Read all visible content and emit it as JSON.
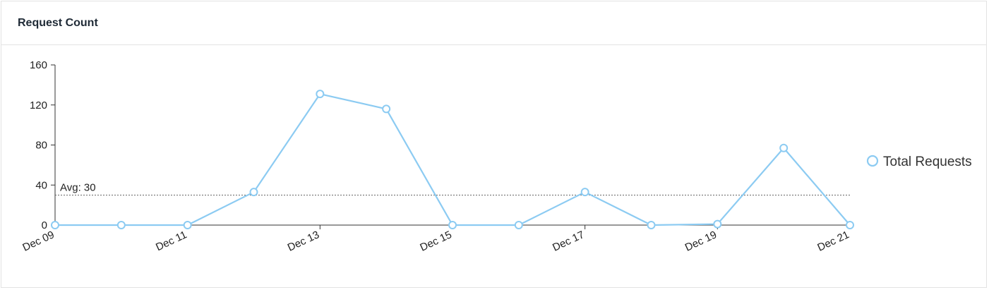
{
  "panel": {
    "title": "Request Count"
  },
  "chart_data": {
    "type": "line",
    "x": [
      "Dec 09",
      "Dec 10",
      "Dec 11",
      "Dec 12",
      "Dec 13",
      "Dec 14",
      "Dec 15",
      "Dec 16",
      "Dec 17",
      "Dec 18",
      "Dec 19",
      "Dec 20",
      "Dec 21"
    ],
    "x_tick_labels": [
      "Dec 09",
      "Dec 11",
      "Dec 13",
      "Dec 15",
      "Dec 17",
      "Dec 19",
      "Dec 21"
    ],
    "series": [
      {
        "name": "Total Requests",
        "values": [
          0,
          0,
          0,
          33,
          131,
          116,
          0,
          0,
          33,
          0,
          1,
          77,
          0
        ]
      }
    ],
    "ylim": [
      0,
      160
    ],
    "y_ticks": [
      0,
      40,
      80,
      120,
      160
    ],
    "average": {
      "label": "Avg: 30",
      "value": 30
    },
    "legend": "right",
    "grid": false,
    "colors": {
      "line": "#8ccbf2",
      "marker_fill": "#ffffff",
      "axis": "#333333",
      "avg_line": "#666666"
    }
  }
}
